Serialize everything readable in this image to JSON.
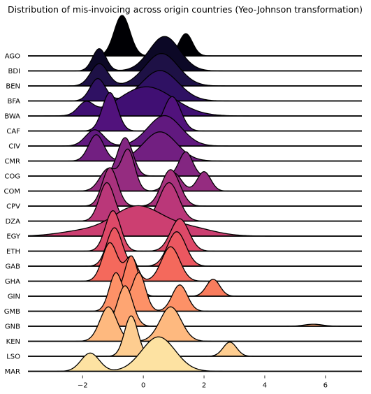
{
  "chart_data": {
    "type": "ridgeline",
    "title": "Distribution of mis-invoicing across origin countries (Yeo-Johnson transformation)",
    "xlabel": "",
    "ylabel": "",
    "xlim": [
      -3.8,
      7.2
    ],
    "xticks": [
      -2,
      0,
      2,
      4,
      6
    ],
    "grid": false,
    "legend": "none",
    "colormap": "magma",
    "series": [
      {
        "name": "AGO",
        "color": "#000004",
        "components": [
          [
            -0.7,
            0.26,
            1.0
          ],
          [
            1.4,
            0.22,
            0.55
          ]
        ]
      },
      {
        "name": "BDI",
        "color": "#0c0826",
        "components": [
          [
            -1.45,
            0.22,
            0.55
          ],
          [
            0.7,
            0.5,
            0.85
          ]
        ]
      },
      {
        "name": "BEN",
        "color": "#1e1146",
        "components": [
          [
            -1.45,
            0.28,
            0.55
          ],
          [
            0.6,
            0.55,
            0.8
          ]
        ]
      },
      {
        "name": "BFA",
        "color": "#2f1163",
        "components": [
          [
            -1.5,
            0.25,
            0.55
          ],
          [
            0.55,
            0.6,
            0.75
          ]
        ]
      },
      {
        "name": "BWA",
        "color": "#400f73",
        "components": [
          [
            -1.9,
            0.25,
            0.3
          ],
          [
            0.1,
            0.9,
            0.72
          ]
        ]
      },
      {
        "name": "CAF",
        "color": "#51127c",
        "components": [
          [
            -1.1,
            0.25,
            0.95
          ],
          [
            0.95,
            0.28,
            0.85
          ]
        ]
      },
      {
        "name": "CIV",
        "color": "#61197f",
        "components": [
          [
            -1.6,
            0.3,
            0.4
          ],
          [
            0.7,
            0.55,
            0.75
          ]
        ]
      },
      {
        "name": "CMR",
        "color": "#721f81",
        "components": [
          [
            -1.55,
            0.25,
            0.65
          ],
          [
            0.55,
            0.55,
            0.72
          ]
        ]
      },
      {
        "name": "COG",
        "color": "#832681",
        "components": [
          [
            -0.6,
            0.25,
            0.95
          ],
          [
            1.4,
            0.22,
            0.6
          ]
        ]
      },
      {
        "name": "COM",
        "color": "#952c80",
        "components": [
          [
            -1.15,
            0.28,
            0.55
          ],
          [
            -0.5,
            0.22,
            1.0
          ],
          [
            1.0,
            0.25,
            0.45
          ],
          [
            2.0,
            0.22,
            0.48
          ]
        ]
      },
      {
        "name": "CPV",
        "color": "#a8327d",
        "components": [
          [
            -1.1,
            0.25,
            0.95
          ],
          [
            0.9,
            0.3,
            0.9
          ]
        ]
      },
      {
        "name": "DZA",
        "color": "#ba3779",
        "components": [
          [
            -1.2,
            0.25,
            0.95
          ],
          [
            0.85,
            0.32,
            0.95
          ]
        ]
      },
      {
        "name": "EGY",
        "color": "#cc3f71",
        "components": [
          [
            -2.0,
            0.8,
            0.12
          ],
          [
            -0.2,
            0.8,
            0.72
          ],
          [
            1.5,
            0.8,
            0.2
          ]
        ]
      },
      {
        "name": "ETH",
        "color": "#dd4968",
        "components": [
          [
            -1.0,
            0.25,
            1.0
          ],
          [
            1.2,
            0.3,
            0.8
          ]
        ]
      },
      {
        "name": "GAB",
        "color": "#eb5760",
        "components": [
          [
            -0.95,
            0.25,
            0.95
          ],
          [
            1.1,
            0.3,
            0.85
          ]
        ]
      },
      {
        "name": "GHA",
        "color": "#f4695c",
        "components": [
          [
            -1.1,
            0.25,
            0.95
          ],
          [
            -0.4,
            0.2,
            0.6
          ],
          [
            0.9,
            0.3,
            0.85
          ]
        ]
      },
      {
        "name": "GIN",
        "color": "#f97c5d",
        "components": [
          [
            -0.4,
            0.22,
            1.0
          ],
          [
            2.3,
            0.22,
            0.42
          ]
        ]
      },
      {
        "name": "GMB",
        "color": "#fd9167",
        "components": [
          [
            -0.9,
            0.22,
            0.95
          ],
          [
            -0.15,
            0.22,
            0.95
          ],
          [
            1.2,
            0.25,
            0.65
          ]
        ]
      },
      {
        "name": "GNB",
        "color": "#fea572",
        "components": [
          [
            -0.6,
            0.25,
            1.0
          ],
          [
            5.6,
            0.3,
            0.05
          ]
        ]
      },
      {
        "name": "KEN",
        "color": "#feb97f",
        "components": [
          [
            -1.15,
            0.28,
            0.85
          ],
          [
            0.9,
            0.35,
            0.85
          ]
        ]
      },
      {
        "name": "LSO",
        "color": "#fecd90",
        "components": [
          [
            -0.4,
            0.22,
            1.0
          ],
          [
            2.85,
            0.22,
            0.35
          ]
        ]
      },
      {
        "name": "MAR",
        "color": "#fde2a2",
        "components": [
          [
            -1.75,
            0.3,
            0.45
          ],
          [
            0.5,
            0.55,
            0.85
          ]
        ]
      }
    ]
  }
}
